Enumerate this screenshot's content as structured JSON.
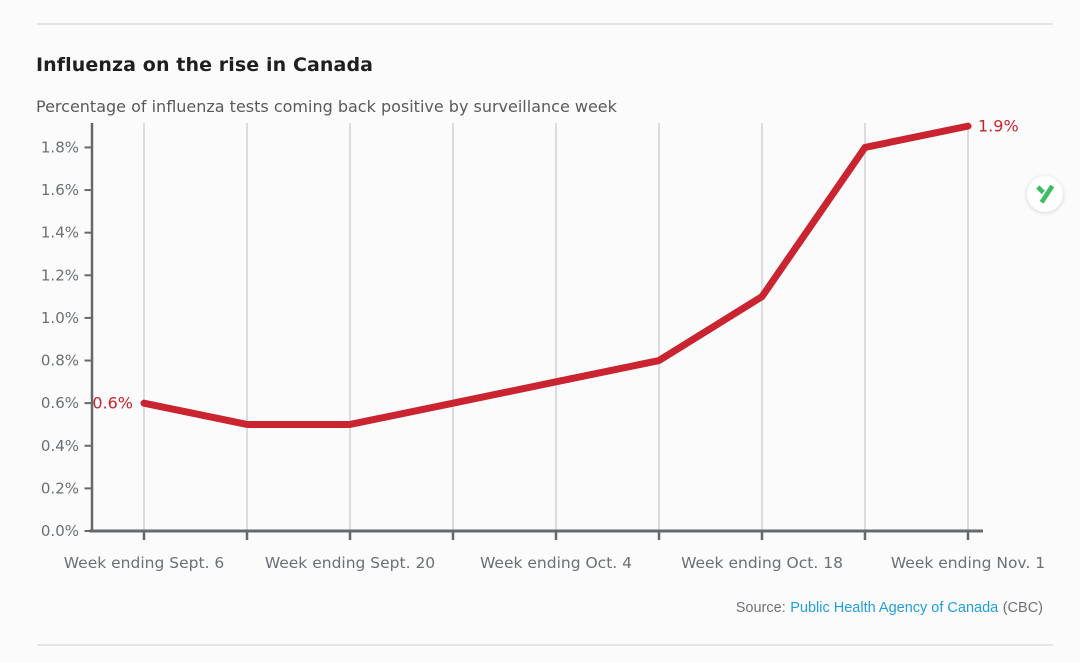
{
  "header": {
    "title": "Influenza on the rise in Canada",
    "subtitle": "Percentage of influenza tests coming back positive by surveillance week"
  },
  "source": {
    "prefix": "Source:",
    "link": "Public Health Agency of Canada",
    "suffix": "(CBC)"
  },
  "branding": {
    "logo_icon": "y-logo",
    "logo_color": "#3dbd63"
  },
  "colors": {
    "series": "#c9242f",
    "point_label": "#c9242f",
    "axis_line": "#66696c",
    "grid_line": "#ccd3d6",
    "axis_text": "#6b7074",
    "link": "#1f9fdc",
    "title_text": "#1f1f1f",
    "subtitle_text": "#5a5a5a",
    "background": "#fbfbfb"
  },
  "chart_data": {
    "type": "line",
    "title": "Influenza on the rise in Canada",
    "xlabel": "",
    "ylabel": "",
    "num_points": 9,
    "series": [
      {
        "name": "Percent of influenza tests positive",
        "values": [
          0.6,
          0.5,
          0.5,
          0.6,
          0.7,
          0.8,
          1.1,
          1.8,
          1.9
        ]
      }
    ],
    "x_tick_labels": [
      "Week ending Sept. 6",
      "Week ending Sept. 20",
      "Week ending Oct. 4",
      "Week ending Oct. 18",
      "Week ending Nov. 1"
    ],
    "x_tick_indices": [
      0,
      2,
      4,
      6,
      8
    ],
    "y_ticks": [
      {
        "value": 0.0,
        "label": "0.0%"
      },
      {
        "value": 0.2,
        "label": "0.2%"
      },
      {
        "value": 0.4,
        "label": "0.4%"
      },
      {
        "value": 0.6,
        "label": "0.6%"
      },
      {
        "value": 0.8,
        "label": "0.8%"
      },
      {
        "value": 1.0,
        "label": "1.0%"
      },
      {
        "value": 1.2,
        "label": "1.2%"
      },
      {
        "value": 1.4,
        "label": "1.4%"
      },
      {
        "value": 1.6,
        "label": "1.6%"
      },
      {
        "value": 1.8,
        "label": "1.8%"
      }
    ],
    "ylim": [
      0,
      1.91
    ],
    "point_labels": {
      "first": "0.6%",
      "last": "1.9%"
    },
    "grid": "vertical",
    "legend": "none"
  }
}
